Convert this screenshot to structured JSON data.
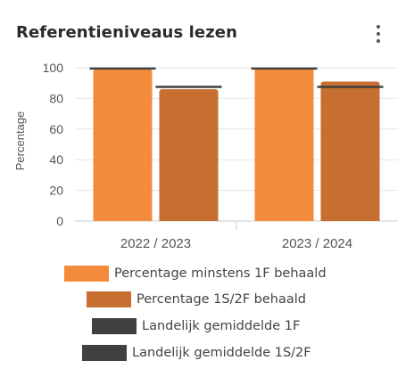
{
  "card": {
    "title": "Referentieniveaus lezen",
    "menu_icon": "more-vertical-icon"
  },
  "colors": {
    "series1": "#f28c3c",
    "series2": "#c66f30",
    "reference": "#404040",
    "grid": "#e6e6e6"
  },
  "chart_data": {
    "type": "bar",
    "title": "Referentieniveaus lezen",
    "xlabel": "",
    "ylabel": "Percentage",
    "ylim": [
      0,
      100
    ],
    "yticks": [
      0,
      20,
      40,
      60,
      80,
      100
    ],
    "grid": true,
    "legend_position": "bottom",
    "categories": [
      "2022 / 2023",
      "2023 / 2024"
    ],
    "series": [
      {
        "name": "Percentage minstens 1F behaald",
        "type": "bar",
        "values": [
          99,
          100
        ]
      },
      {
        "name": "Percentage 1S/2F behaald",
        "type": "bar",
        "values": [
          86,
          91
        ]
      }
    ],
    "reference_series": [
      {
        "name": "Landelijk gemiddelde 1F",
        "type": "line-marker",
        "values": [
          99.5,
          99.5
        ]
      },
      {
        "name": "Landelijk gemiddelde 1S/2F",
        "type": "line-marker",
        "values": [
          87.5,
          87.5
        ]
      }
    ]
  }
}
